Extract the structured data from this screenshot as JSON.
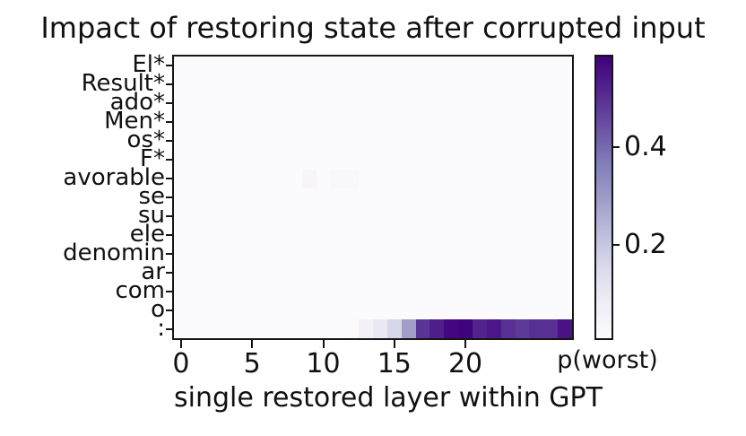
{
  "chart_data": {
    "type": "heatmap",
    "title": "Impact of restoring state after corrupted input",
    "xlabel": "single restored layer within GPT",
    "colorbar_label": "p(worst)",
    "colormap": "Purples",
    "n_layers": 28,
    "x_ticks": [
      0,
      5,
      10,
      15,
      20
    ],
    "colorbar_ticks": [
      0.2,
      0.4
    ],
    "vmin": 0.01,
    "vmax": 0.585,
    "y_categories": [
      "El*",
      "Result*",
      "ado*",
      "Men*",
      "os*",
      "F*",
      "avorable",
      "se",
      "su",
      "ele",
      "denomin",
      "ar",
      "com",
      "o",
      ":"
    ],
    "values": [
      [
        0.015,
        0.015,
        0.015,
        0.015,
        0.015,
        0.015,
        0.015,
        0.015,
        0.015,
        0.015,
        0.015,
        0.015,
        0.015,
        0.015,
        0.015,
        0.015,
        0.015,
        0.015,
        0.015,
        0.015,
        0.015,
        0.015,
        0.015,
        0.015,
        0.015,
        0.015,
        0.015,
        0.015
      ],
      [
        0.015,
        0.015,
        0.015,
        0.015,
        0.015,
        0.015,
        0.015,
        0.015,
        0.015,
        0.015,
        0.015,
        0.015,
        0.015,
        0.015,
        0.015,
        0.015,
        0.015,
        0.015,
        0.015,
        0.015,
        0.015,
        0.015,
        0.015,
        0.015,
        0.015,
        0.015,
        0.015,
        0.015
      ],
      [
        0.015,
        0.015,
        0.015,
        0.015,
        0.015,
        0.015,
        0.015,
        0.015,
        0.015,
        0.015,
        0.015,
        0.015,
        0.015,
        0.015,
        0.015,
        0.015,
        0.015,
        0.015,
        0.015,
        0.015,
        0.015,
        0.015,
        0.015,
        0.015,
        0.015,
        0.015,
        0.015,
        0.015
      ],
      [
        0.015,
        0.015,
        0.015,
        0.015,
        0.015,
        0.015,
        0.015,
        0.015,
        0.015,
        0.015,
        0.015,
        0.015,
        0.015,
        0.015,
        0.015,
        0.015,
        0.015,
        0.015,
        0.015,
        0.015,
        0.015,
        0.015,
        0.015,
        0.015,
        0.015,
        0.015,
        0.015,
        0.015
      ],
      [
        0.015,
        0.015,
        0.015,
        0.015,
        0.015,
        0.015,
        0.015,
        0.015,
        0.015,
        0.015,
        0.015,
        0.015,
        0.015,
        0.015,
        0.015,
        0.015,
        0.015,
        0.015,
        0.015,
        0.015,
        0.015,
        0.015,
        0.015,
        0.015,
        0.015,
        0.015,
        0.015,
        0.015
      ],
      [
        0.015,
        0.015,
        0.015,
        0.015,
        0.015,
        0.015,
        0.015,
        0.015,
        0.015,
        0.015,
        0.015,
        0.015,
        0.015,
        0.015,
        0.015,
        0.015,
        0.015,
        0.015,
        0.015,
        0.015,
        0.015,
        0.015,
        0.015,
        0.015,
        0.015,
        0.015,
        0.015,
        0.015
      ],
      [
        0.015,
        0.015,
        0.015,
        0.015,
        0.015,
        0.015,
        0.015,
        0.015,
        0.015,
        0.04,
        0.015,
        0.03,
        0.03,
        0.015,
        0.015,
        0.015,
        0.015,
        0.015,
        0.015,
        0.015,
        0.015,
        0.015,
        0.015,
        0.015,
        0.015,
        0.015,
        0.015,
        0.015
      ],
      [
        0.015,
        0.015,
        0.015,
        0.015,
        0.015,
        0.015,
        0.015,
        0.015,
        0.015,
        0.015,
        0.015,
        0.015,
        0.015,
        0.015,
        0.015,
        0.015,
        0.015,
        0.015,
        0.015,
        0.015,
        0.015,
        0.015,
        0.015,
        0.015,
        0.015,
        0.015,
        0.015,
        0.015
      ],
      [
        0.015,
        0.015,
        0.015,
        0.015,
        0.015,
        0.015,
        0.015,
        0.015,
        0.015,
        0.015,
        0.015,
        0.015,
        0.015,
        0.015,
        0.015,
        0.015,
        0.015,
        0.015,
        0.015,
        0.015,
        0.015,
        0.015,
        0.015,
        0.015,
        0.015,
        0.015,
        0.015,
        0.015
      ],
      [
        0.015,
        0.015,
        0.015,
        0.015,
        0.015,
        0.015,
        0.015,
        0.015,
        0.015,
        0.015,
        0.015,
        0.015,
        0.015,
        0.015,
        0.015,
        0.015,
        0.015,
        0.015,
        0.015,
        0.015,
        0.015,
        0.015,
        0.015,
        0.015,
        0.015,
        0.015,
        0.015,
        0.015
      ],
      [
        0.015,
        0.015,
        0.015,
        0.015,
        0.015,
        0.015,
        0.015,
        0.015,
        0.015,
        0.015,
        0.015,
        0.015,
        0.015,
        0.015,
        0.015,
        0.015,
        0.015,
        0.015,
        0.015,
        0.015,
        0.015,
        0.015,
        0.015,
        0.015,
        0.015,
        0.015,
        0.015,
        0.015
      ],
      [
        0.015,
        0.015,
        0.015,
        0.015,
        0.015,
        0.015,
        0.015,
        0.015,
        0.015,
        0.015,
        0.015,
        0.015,
        0.015,
        0.015,
        0.015,
        0.015,
        0.015,
        0.015,
        0.015,
        0.015,
        0.015,
        0.015,
        0.015,
        0.015,
        0.015,
        0.015,
        0.015,
        0.015
      ],
      [
        0.015,
        0.015,
        0.015,
        0.015,
        0.015,
        0.015,
        0.015,
        0.015,
        0.015,
        0.015,
        0.015,
        0.015,
        0.015,
        0.015,
        0.015,
        0.015,
        0.015,
        0.015,
        0.015,
        0.015,
        0.015,
        0.015,
        0.015,
        0.015,
        0.015,
        0.015,
        0.015,
        0.015
      ],
      [
        0.015,
        0.015,
        0.015,
        0.015,
        0.015,
        0.015,
        0.015,
        0.015,
        0.015,
        0.015,
        0.015,
        0.015,
        0.015,
        0.015,
        0.015,
        0.015,
        0.015,
        0.015,
        0.015,
        0.015,
        0.015,
        0.015,
        0.015,
        0.015,
        0.015,
        0.015,
        0.015,
        0.015
      ],
      [
        0.015,
        0.015,
        0.015,
        0.015,
        0.015,
        0.015,
        0.015,
        0.015,
        0.015,
        0.015,
        0.015,
        0.015,
        0.02,
        0.06,
        0.1,
        0.16,
        0.29,
        0.49,
        0.53,
        0.57,
        0.58,
        0.52,
        0.54,
        0.5,
        0.48,
        0.5,
        0.5,
        0.55
      ]
    ]
  }
}
